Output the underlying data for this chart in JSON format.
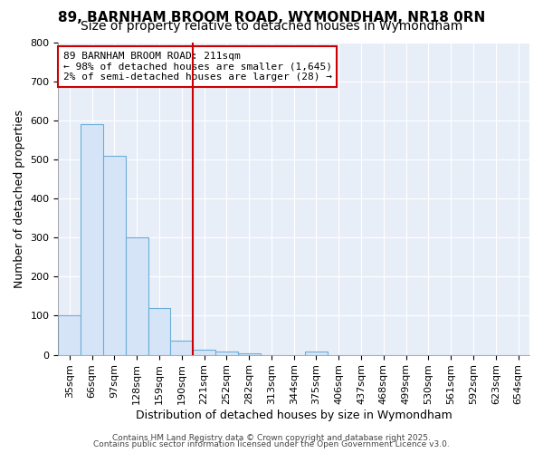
{
  "title1": "89, BARNHAM BROOM ROAD, WYMONDHAM, NR18 0RN",
  "title2": "Size of property relative to detached houses in Wymondham",
  "xlabel": "Distribution of detached houses by size in Wymondham",
  "ylabel": "Number of detached properties",
  "bins": [
    "35sqm",
    "66sqm",
    "97sqm",
    "128sqm",
    "159sqm",
    "190sqm",
    "221sqm",
    "252sqm",
    "282sqm",
    "313sqm",
    "344sqm",
    "375sqm",
    "406sqm",
    "437sqm",
    "468sqm",
    "499sqm",
    "530sqm",
    "561sqm",
    "592sqm",
    "623sqm",
    "654sqm"
  ],
  "values": [
    100,
    590,
    510,
    300,
    120,
    37,
    13,
    8,
    3,
    0,
    0,
    8,
    0,
    0,
    0,
    0,
    0,
    0,
    0,
    0,
    0
  ],
  "bar_color": "#d6e4f7",
  "bar_edge_color": "#6baed6",
  "vline_x": 6,
  "vline_color": "#cc0000",
  "annotation_text": "89 BARNHAM BROOM ROAD: 211sqm\n← 98% of detached houses are smaller (1,645)\n2% of semi-detached houses are larger (28) →",
  "annotation_box_color": "#ffffff",
  "annotation_box_edge": "#cc0000",
  "ylim": [
    0,
    800
  ],
  "yticks": [
    0,
    100,
    200,
    300,
    400,
    500,
    600,
    700,
    800
  ],
  "bg_color": "#ffffff",
  "plot_bg_color": "#e8eef8",
  "footer1": "Contains HM Land Registry data © Crown copyright and database right 2025.",
  "footer2": "Contains public sector information licensed under the Open Government Licence v3.0.",
  "title_fontsize": 11,
  "subtitle_fontsize": 10,
  "axis_fontsize": 9,
  "tick_fontsize": 8
}
